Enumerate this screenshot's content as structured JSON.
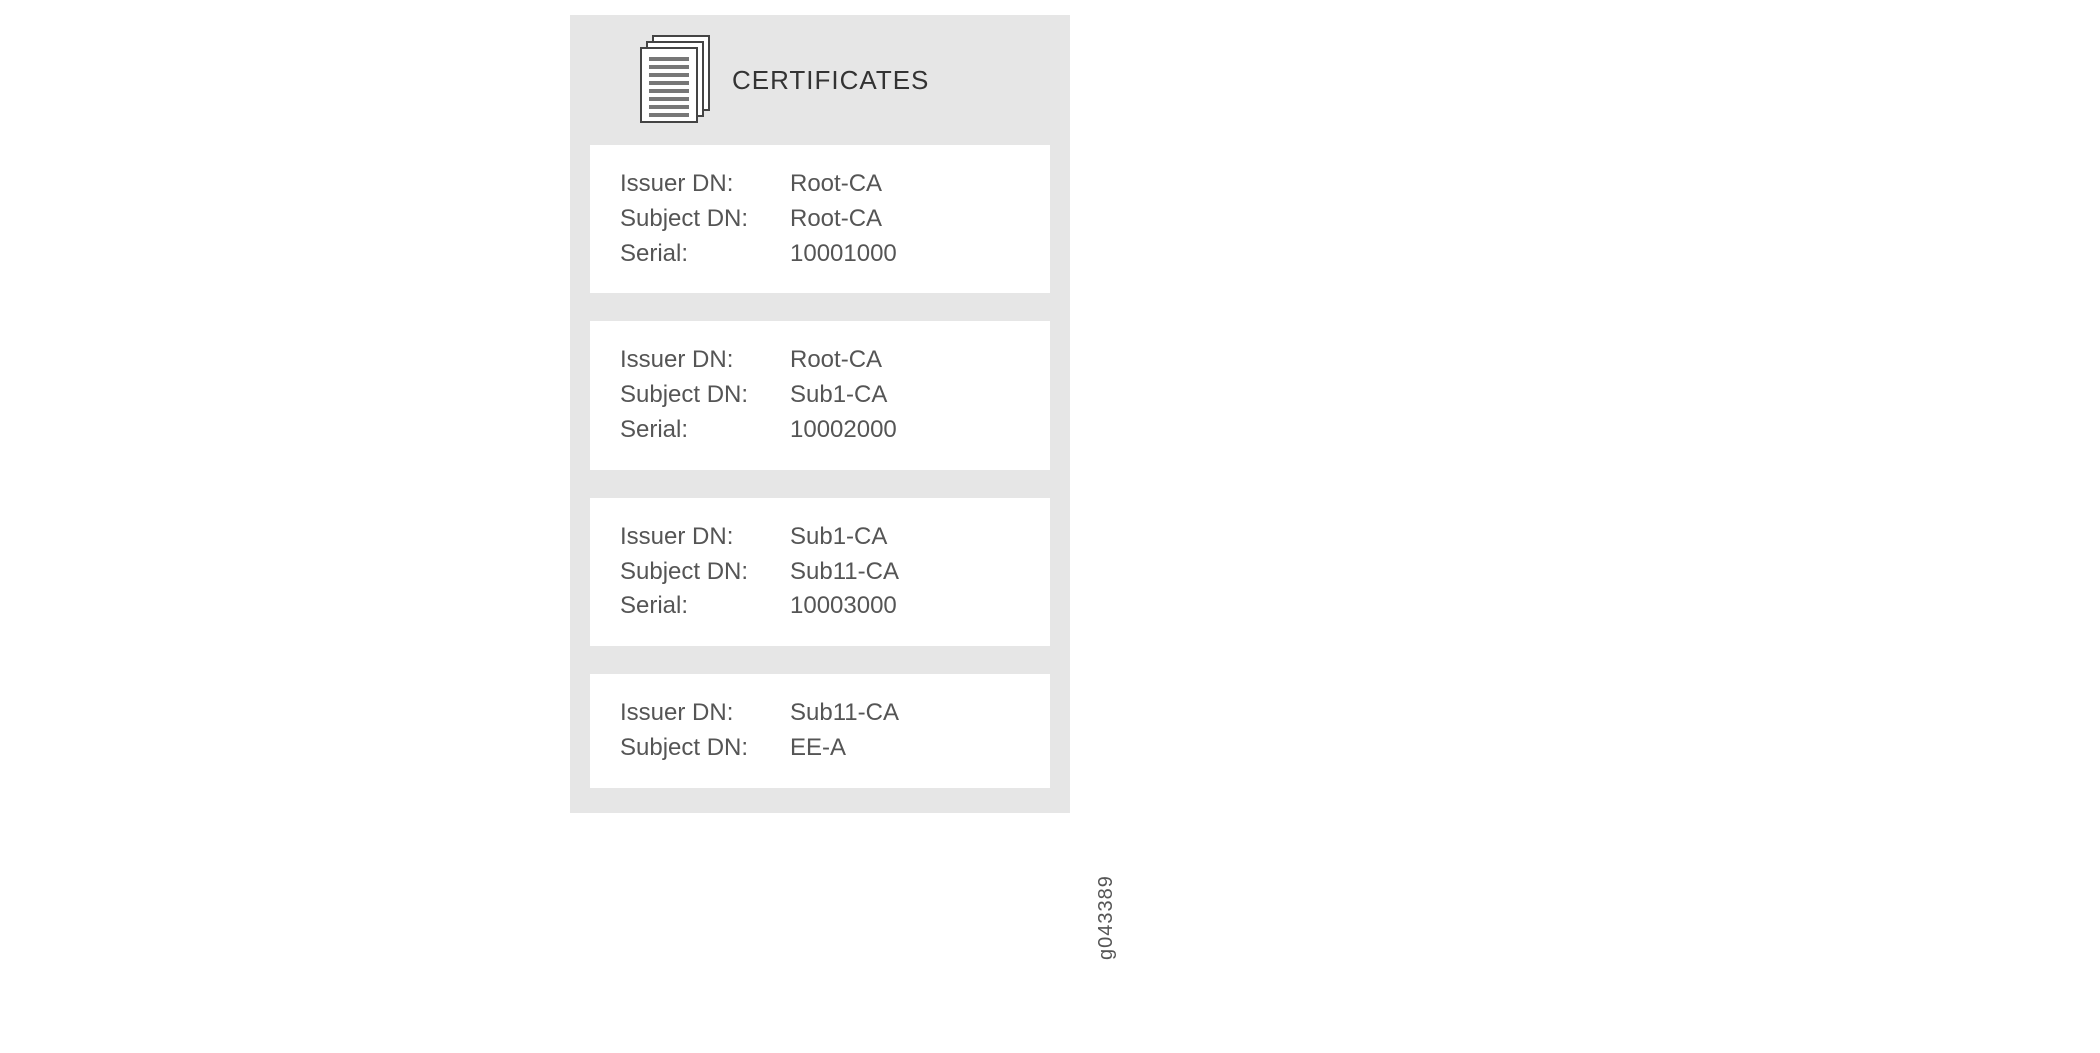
{
  "panel": {
    "background_color": "#e6e6e6",
    "card_background_color": "#ffffff",
    "title": "CERTIFICATES",
    "title_fontsize": 26,
    "body_fontsize": 24,
    "text_color": "#555555",
    "icon": {
      "name": "stacked-documents-icon",
      "border_color": "#444444",
      "line_color": "#777777"
    },
    "field_labels": {
      "issuer": "Issuer DN:",
      "subject": "Subject DN:",
      "serial": "Serial:"
    },
    "certificates": [
      {
        "issuer": "Root-CA",
        "subject": "Root-CA",
        "serial": "10001000"
      },
      {
        "issuer": "Root-CA",
        "subject": "Sub1-CA",
        "serial": "10002000"
      },
      {
        "issuer": "Sub1-CA",
        "subject": "Sub11-CA",
        "serial": "10003000"
      },
      {
        "issuer": "Sub11-CA",
        "subject": "EE-A"
      }
    ]
  },
  "figure_ref": "g043389"
}
